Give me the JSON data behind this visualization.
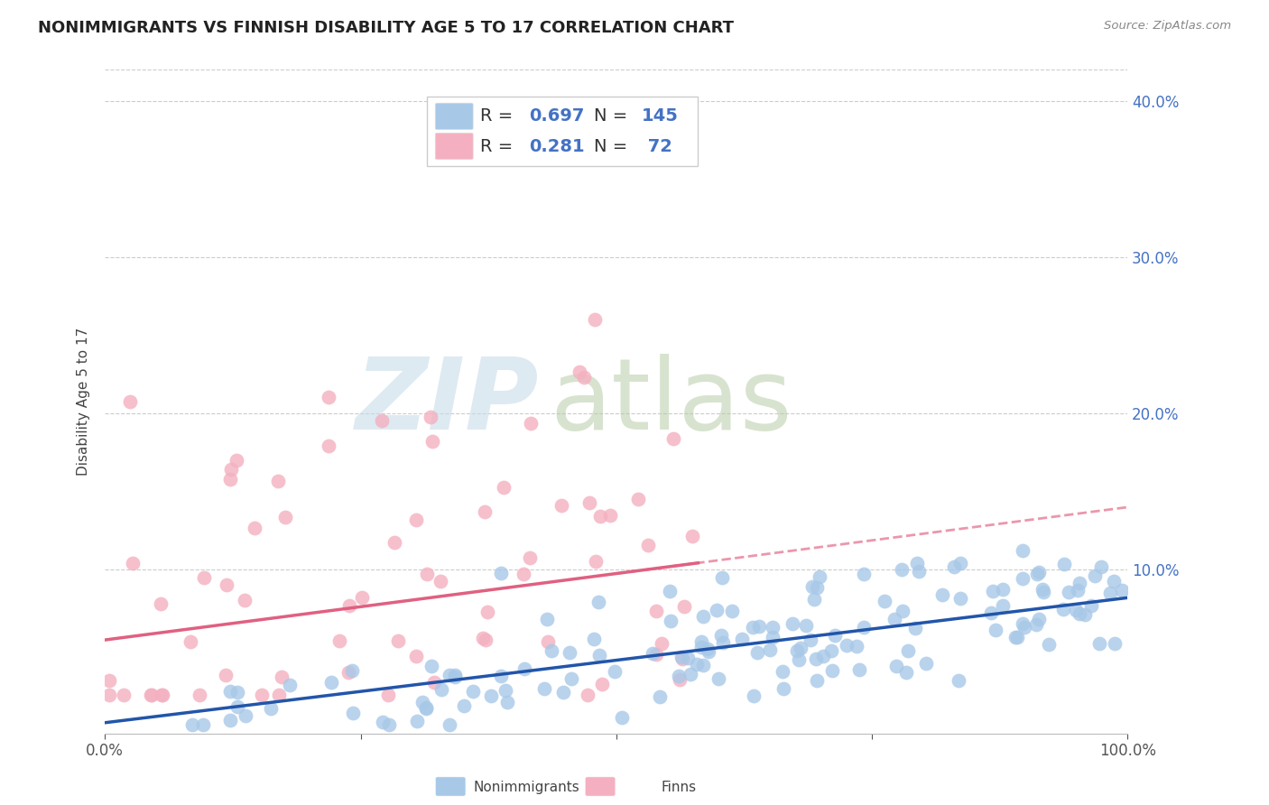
{
  "title": "NONIMMIGRANTS VS FINNISH DISABILITY AGE 5 TO 17 CORRELATION CHART",
  "source": "Source: ZipAtlas.com",
  "ylabel": "Disability Age 5 to 17",
  "xlim": [
    0,
    1.0
  ],
  "ylim": [
    -0.005,
    0.42
  ],
  "grid_color": "#cccccc",
  "blue_color": "#a8c8e8",
  "pink_color": "#f4b0c0",
  "blue_line_color": "#2255aa",
  "pink_line_color": "#e06080",
  "watermark_zip": "ZIP",
  "watermark_atlas": "atlas",
  "watermark_color_zip": "#c8d8e8",
  "watermark_color_atlas": "#b0c8a0",
  "background_color": "#ffffff",
  "title_fontsize": 13,
  "axis_label_fontsize": 11,
  "tick_fontsize": 12,
  "legend_fontsize": 14,
  "blue_n": 145,
  "pink_n": 72,
  "blue_R": 0.697,
  "pink_R": 0.281,
  "blue_intercept": 0.002,
  "blue_slope": 0.08,
  "pink_intercept": 0.055,
  "pink_slope": 0.085,
  "blue_seed": 42,
  "pink_seed": 99
}
